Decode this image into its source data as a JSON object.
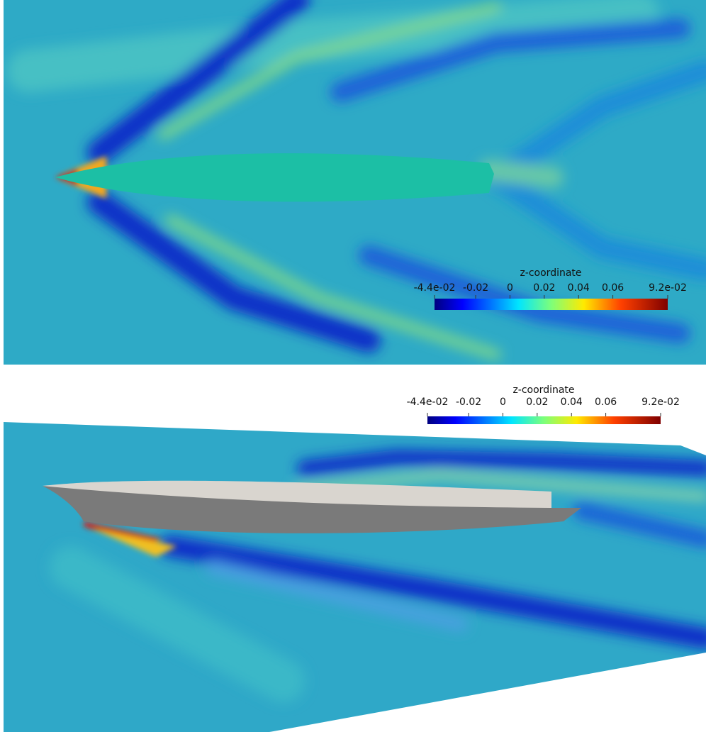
{
  "panels": [
    {
      "colorbar": {
        "title": "z-coordinate",
        "range": [
          -0.044,
          0.092
        ],
        "ticks": [
          {
            "value": -0.044,
            "label": "-4.4e-02"
          },
          -0.02,
          0,
          0.02,
          0.04,
          0.06,
          {
            "value": 0.092,
            "label": "9.2e-02"
          }
        ]
      }
    },
    {
      "colorbar": {
        "title": "z-coordinate",
        "range": [
          -0.044,
          0.092
        ],
        "ticks": [
          {
            "value": -0.044,
            "label": "-4.4e-02"
          },
          -0.02,
          0,
          0.02,
          0.04,
          0.06,
          {
            "value": 0.092,
            "label": "9.2e-02"
          }
        ]
      }
    }
  ]
}
